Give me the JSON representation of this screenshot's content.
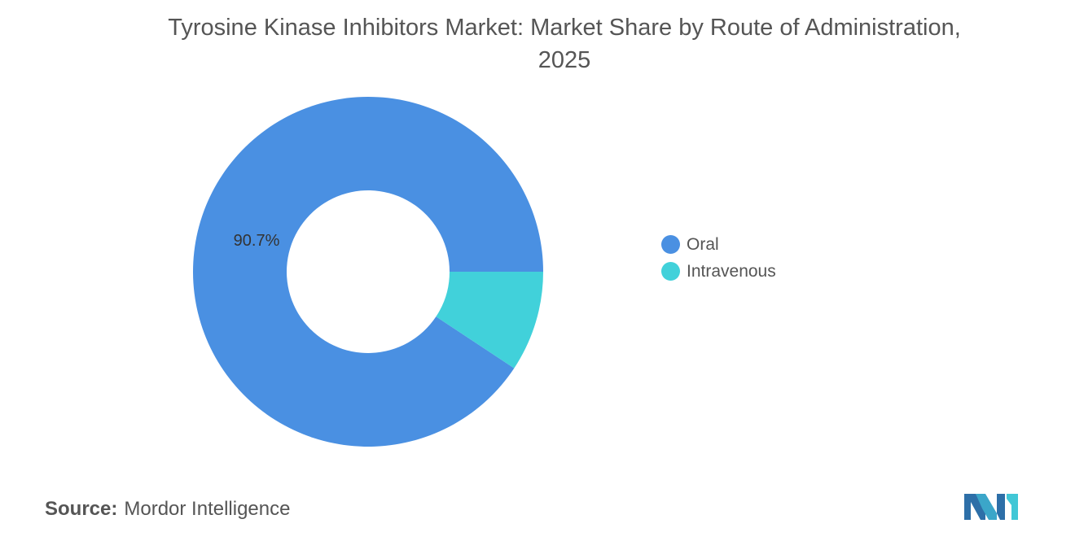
{
  "title_line1": "Tyrosine Kinase Inhibitors Market: Market Share by Route of Administration,",
  "title_line2": "2025",
  "source": {
    "label": "Source:",
    "value": "Mordor Intelligence"
  },
  "logo_icon": "mordor-intelligence-logo-icon",
  "chart_data": {
    "type": "pie",
    "style": "donut",
    "title": "Tyrosine Kinase Inhibitors Market: Market Share by Route of Administration, 2025",
    "categories": [
      "Oral",
      "Intravenous"
    ],
    "values": [
      90.7,
      9.3
    ],
    "colors": [
      "#4A90E2",
      "#41D1DA"
    ],
    "data_labels": [
      "90.7%",
      ""
    ],
    "legend_placement": "right",
    "legend": [
      {
        "label": "Oral",
        "color": "#4A90E2"
      },
      {
        "label": "Intravenous",
        "color": "#41D1DA"
      }
    ]
  }
}
